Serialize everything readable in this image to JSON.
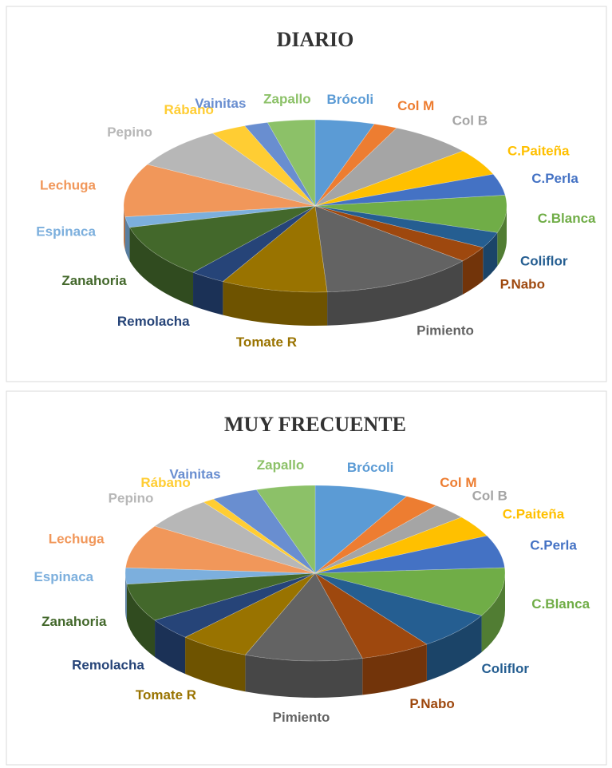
{
  "chart_data": [
    {
      "type": "pie",
      "title": "DIARIO",
      "categories": [
        "Brócoli",
        "Col M",
        "Col B",
        "C.Paiteña",
        "C.Perla",
        "C.Blanca",
        "Coliflor",
        "P.Nabo",
        "Pimiento",
        "Tomate R",
        "Remolacha",
        "Zanahoria",
        "Espinaca",
        "Lechuga",
        "Pepino",
        "Rábano",
        "Vainitas",
        "Zapallo"
      ],
      "values": [
        5,
        2,
        7,
        5,
        4,
        7,
        3,
        3,
        13,
        9,
        3,
        10,
        2,
        10,
        8,
        3,
        2,
        4
      ],
      "colors": [
        "#5B9BD5",
        "#ED7D31",
        "#A5A5A5",
        "#FFC000",
        "#4472C4",
        "#70AD47",
        "#255E91",
        "#9E480E",
        "#636363",
        "#997300",
        "#264478",
        "#43682B",
        "#7CAFDD",
        "#F1975A",
        "#B7B7B7",
        "#FFCD33",
        "#698ED0",
        "#8CC168"
      ]
    },
    {
      "type": "pie",
      "title": "MUY FRECUENTE",
      "categories": [
        "Brócoli",
        "Col M",
        "Col B",
        "C.Paiteña",
        "C.Perla",
        "C.Blanca",
        "Coliflor",
        "P.Nabo",
        "Pimiento",
        "Tomate R",
        "Remolacha",
        "Zanahoria",
        "Espinaca",
        "Lechuga",
        "Pepino",
        "Rábano",
        "Vainitas",
        "Zapallo"
      ],
      "values": [
        8,
        3,
        3,
        4,
        6,
        9,
        7,
        6,
        10,
        6,
        4,
        7,
        3,
        8,
        6,
        1,
        4,
        5
      ],
      "colors": [
        "#5B9BD5",
        "#ED7D31",
        "#A5A5A5",
        "#FFC000",
        "#4472C4",
        "#70AD47",
        "#255E91",
        "#9E480E",
        "#636363",
        "#997300",
        "#264478",
        "#43682B",
        "#7CAFDD",
        "#F1975A",
        "#B7B7B7",
        "#FFCD33",
        "#698ED0",
        "#8CC168"
      ]
    }
  ]
}
